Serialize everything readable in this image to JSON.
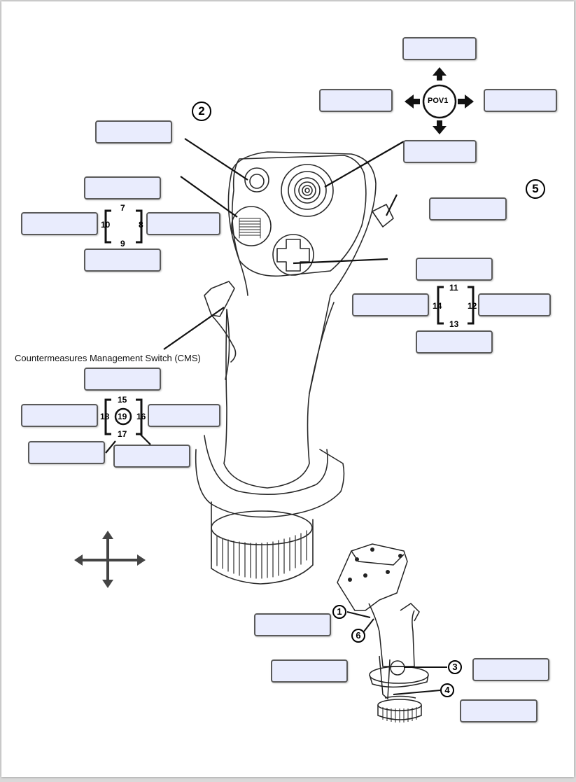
{
  "labels": {
    "cms": "Countermeasures Management Switch (CMS)",
    "pov": "POV1"
  },
  "callouts": {
    "c1": "1",
    "c2": "2",
    "c3": "3",
    "c4": "4",
    "c5": "5",
    "c6": "6"
  },
  "hat_numbers": {
    "n7": "7",
    "n8": "8",
    "n9": "9",
    "n10": "10",
    "n11": "11",
    "n12": "12",
    "n13": "13",
    "n14": "14",
    "n15": "15",
    "n16": "16",
    "n17": "17",
    "n18": "18",
    "n19": "19"
  },
  "colors": {
    "box_fill": "#e9ecfd",
    "box_border": "#5a5a5a",
    "ink": "#000000"
  }
}
